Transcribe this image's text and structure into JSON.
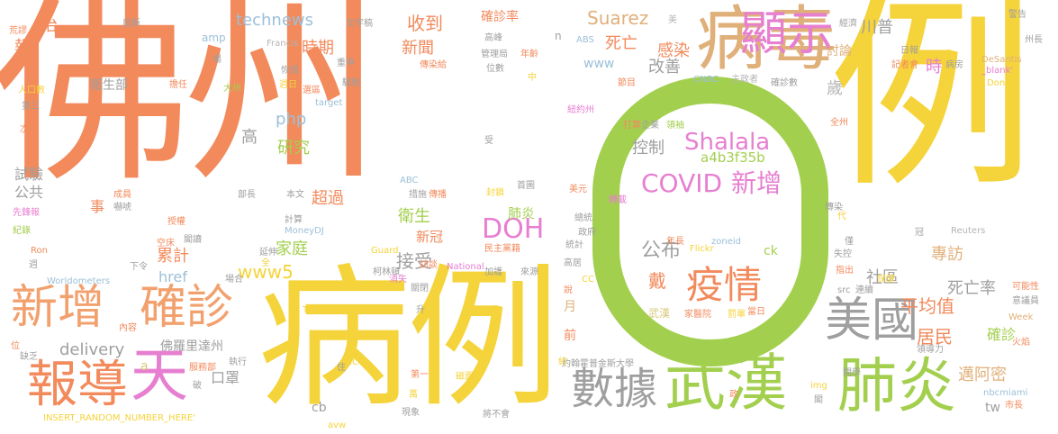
{
  "words": [
    "佛州",
    "0",
    "例",
    "病例",
    "病毒",
    "顯示",
    "新增",
    "確診",
    "武漢",
    "肺炎",
    "報導",
    "天",
    "數據",
    "美國",
    "疫情",
    "COVID",
    "新增",
    "Shalala",
    "a4b3f35b",
    "控制",
    "公布",
    "戴",
    "武漢",
    "家醫院",
    "罰單",
    "當日",
    "technews",
    "收到",
    "確診率",
    "時期",
    "新聞",
    "死亡",
    "感染",
    "改善",
    "Suarez",
    "川普",
    "討論",
    "時",
    "歲",
    "DOH",
    "衛生",
    "肺炎",
    "新冠",
    "接受",
    "家庭",
    "累計",
    "www5",
    "href",
    "delivery",
    "佛羅里達州",
    "口罩",
    "超過",
    "研究",
    "php",
    "高",
    "衛生部",
    "治",
    "報",
    "事",
    "試驗",
    "公共",
    "平均值",
    "居民",
    "社區",
    "死亡率",
    "專訪",
    "確診",
    "邁阿密",
    "tw",
    "cb",
    "www",
    "amp",
    "ck",
    "a",
    "月",
    "前",
    "zoneid",
    "Flickr",
    "年長",
    "ICU",
    "Thomson",
    "Worldometers",
    "INSERT_RANDOM_NUMBER_HERE'",
    "nbcmiami",
    "市長",
    "Reuters",
    "DeSantis",
    "_blank'",
    "Donna",
    "CNBC",
    "ABS",
    "Francis",
    "target",
    "MoneyDJ",
    "ABC",
    "National",
    "Guard",
    "Ron",
    "Week",
    "img",
    "src",
    "avw",
    "CC",
    "文字稿",
    "管理局",
    "年齡",
    "傳染給",
    "位數",
    "擔任",
    "大州",
    "週日",
    "選區",
    "恢復",
    "驟脫",
    "重申",
    "美",
    "經濟",
    "警告",
    "州長",
    "全州",
    "日報",
    "記者會",
    "病房",
    "主政者",
    "確診數",
    "節目",
    "打算",
    "企業",
    "領袖",
    "轉載",
    "首圖",
    "美元",
    "措施",
    "傳播",
    "封鎖",
    "總統",
    "政府",
    "統計",
    "民主黨籍",
    "高居",
    "來源",
    "加護",
    "訪談",
    "關閉",
    "柯林頓",
    "消失",
    "升",
    "說",
    "約翰霍普金斯大學",
    "第一",
    "磁面",
    "萬",
    "現象",
    "將不會",
    "執行",
    "服務部",
    "破",
    "住",
    "政",
    "終",
    "閣",
    "開學",
    "領導力",
    "火焰",
    "可能性",
    "意議員",
    "保健",
    "連續",
    "指出",
    "失控",
    "僅",
    "冠",
    "代",
    "傳染",
    "成員",
    "嚇唬",
    "部長",
    "本文",
    "計算",
    "延伸",
    "空床",
    "授權",
    "閣讀",
    "下令",
    "場合",
    "全",
    "內容",
    "位",
    "缺乏",
    "週",
    "紀錄",
    "先鋒報",
    "次",
    "第三",
    "人口數",
    "荒謬",
    "屆斯",
    "場",
    "高峰",
    "中",
    "受",
    "紐約州",
    "n"
  ]
}
